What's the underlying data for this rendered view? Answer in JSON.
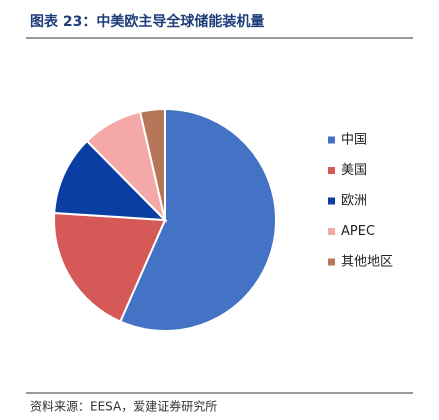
{
  "chart_data": {
    "type": "pie",
    "title": "图表 23：中美欧主导全球储能装机量",
    "source": "资料来源：EESA，爱建证券研究所",
    "categories": [
      "中国",
      "美国",
      "欧洲",
      "APEC",
      "其他地区"
    ],
    "values": [
      56.6,
      19.4,
      11.6,
      8.8,
      3.6
    ],
    "colors": [
      "#4472c4",
      "#d55a57",
      "#0b3ea3",
      "#f4a9a8",
      "#b5765a"
    ],
    "legend": "right"
  }
}
